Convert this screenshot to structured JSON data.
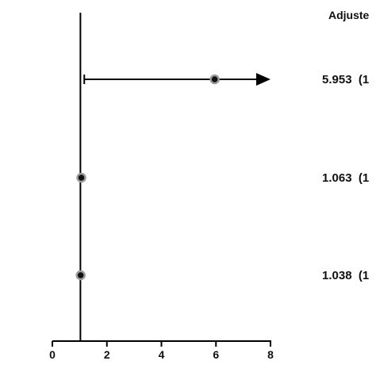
{
  "chart_data": {
    "type": "forest",
    "header": "Adjuste",
    "reference_x": 1,
    "xlim": [
      0,
      8
    ],
    "x_ticks": [
      0,
      2,
      4,
      6,
      8
    ],
    "x_tick_labels": [
      "0",
      "2",
      "4",
      "6",
      "8"
    ],
    "rows": [
      {
        "estimate": 5.953,
        "ci_low": 1.2,
        "ci_high": 8,
        "ci_high_truncated": true,
        "label_text": "5.953  (1"
      },
      {
        "estimate": 1.063,
        "label_text": "1.063  (1"
      },
      {
        "estimate": 1.038,
        "label_text": "1.038  (1"
      }
    ],
    "colors": {
      "marker_fill": "#111111",
      "marker_ring": "#9a9a9a",
      "line": "#000000"
    }
  }
}
